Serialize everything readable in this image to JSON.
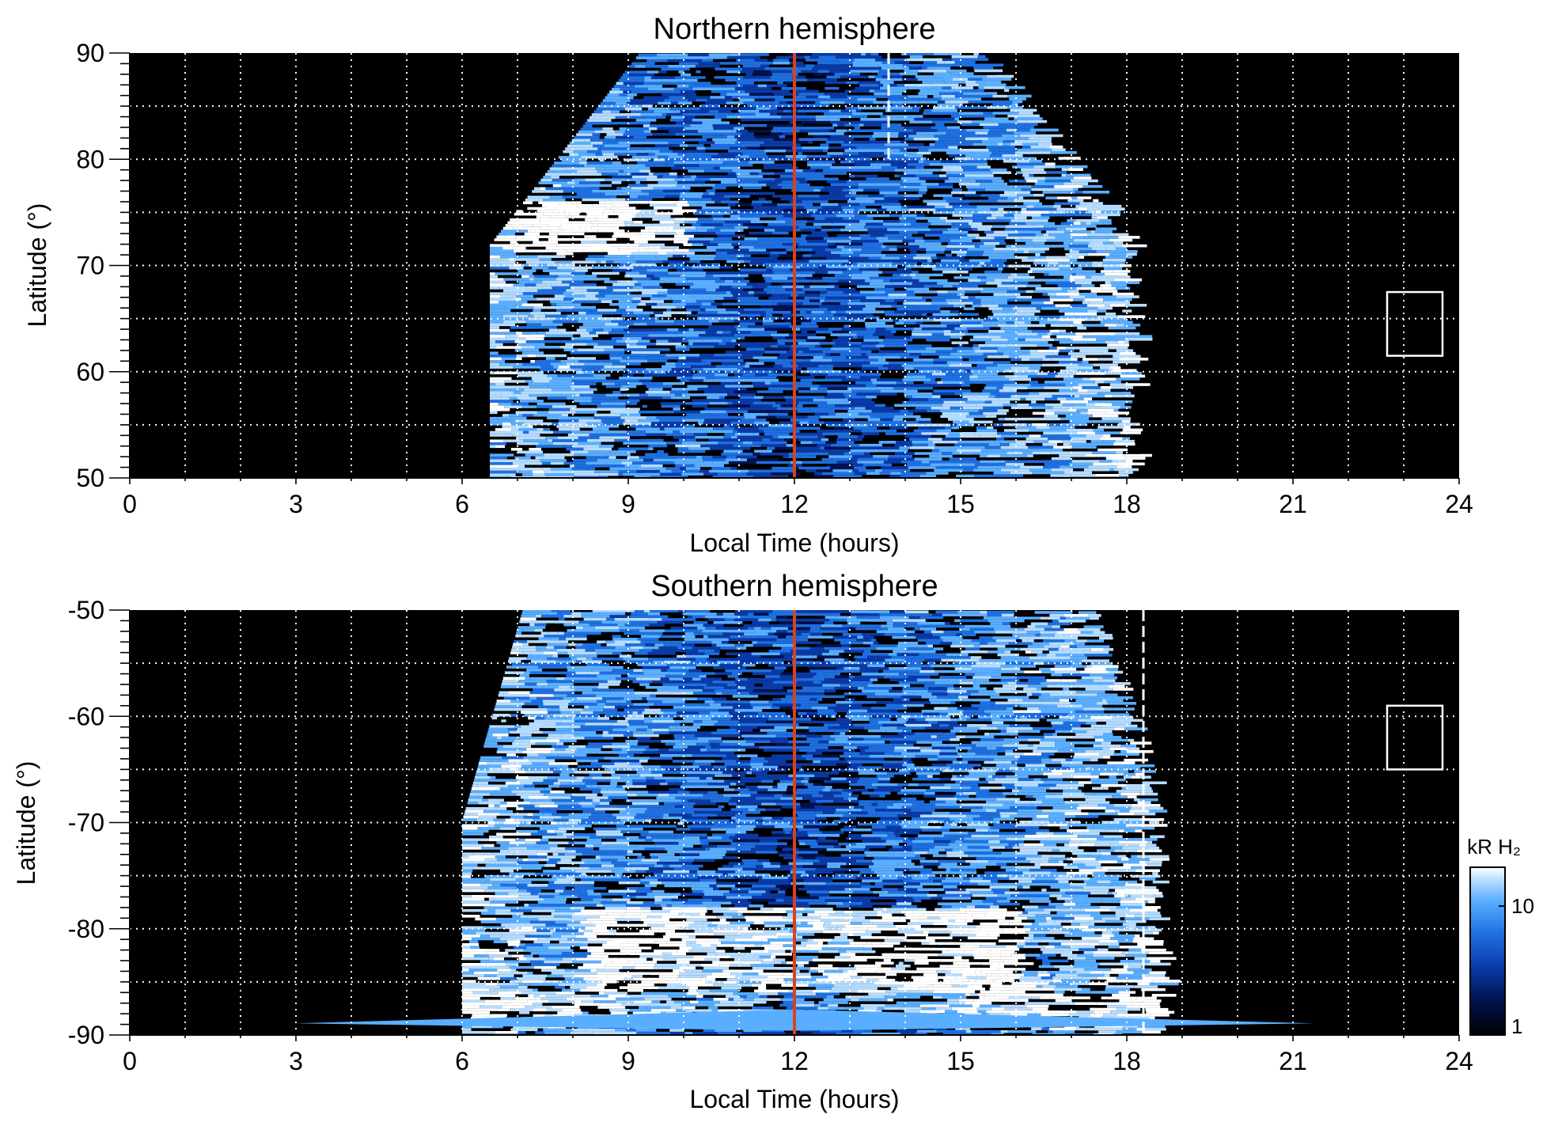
{
  "colors": {
    "background": "#ffffff",
    "plot_background": "#000000",
    "grid": "#ffffff",
    "noon_line": "#d8431c",
    "reference_line": "#ffffff",
    "colormap": [
      "#000000",
      "#02124e",
      "#0a3aa6",
      "#1e6fe0",
      "#5aaeff",
      "#b6dcff",
      "#ffffff"
    ]
  },
  "chart_data": [
    {
      "type": "heatmap",
      "title": "Northern hemisphere",
      "xlabel": "Local Time (hours)",
      "ylabel": "Latitude (°)",
      "xlim": [
        0,
        24
      ],
      "ylim": [
        50,
        90
      ],
      "xticks": [
        0,
        3,
        6,
        9,
        12,
        15,
        18,
        21,
        24
      ],
      "xtick_labels": [
        "0",
        "3",
        "6",
        "9",
        "12",
        "15",
        "18",
        "21",
        "24"
      ],
      "yticks": [
        50,
        60,
        70,
        80,
        90
      ],
      "ytick_labels": [
        "50",
        "60",
        "70",
        "80",
        "90"
      ],
      "grid": true,
      "grid_x_step": 1,
      "grid_y_step": 5,
      "coverage_local_time": [
        6.5,
        18.0
      ],
      "bright_arc": {
        "local_time": [
          6.7,
          10.0
        ],
        "latitude": [
          71,
          76
        ]
      },
      "noon_line_local_time": 12.0,
      "reference_line_local_time": 13.7,
      "reference_line_latitude_range": [
        80,
        90
      ],
      "box_marker": {
        "local_time": [
          22.7,
          23.7
        ],
        "latitude": [
          61.5,
          67.5
        ]
      }
    },
    {
      "type": "heatmap",
      "title": "Southern hemisphere",
      "xlabel": "Local Time (hours)",
      "ylabel": "Latitude (°)",
      "xlim": [
        0,
        24
      ],
      "ylim": [
        -90,
        -50
      ],
      "xticks": [
        0,
        3,
        6,
        9,
        12,
        15,
        18,
        21,
        24
      ],
      "xtick_labels": [
        "0",
        "3",
        "6",
        "9",
        "12",
        "15",
        "18",
        "21",
        "24"
      ],
      "yticks": [
        -90,
        -80,
        -70,
        -60,
        -50
      ],
      "ytick_labels": [
        "-90",
        "-80",
        "-70",
        "-60",
        "-50"
      ],
      "grid": true,
      "grid_x_step": 1,
      "grid_y_step": 5,
      "coverage_local_time": [
        6.0,
        18.5
      ],
      "bright_arc": {
        "local_time": [
          8.0,
          16.0
        ],
        "latitude": [
          -86,
          -78
        ]
      },
      "noon_line_local_time": 12.0,
      "reference_line_local_time": 18.3,
      "reference_line_latitude_range": [
        -90,
        -50
      ],
      "box_marker": {
        "local_time": [
          22.7,
          23.7
        ],
        "latitude": [
          -65,
          -59
        ]
      },
      "colorbar": {
        "label": "kR H₂",
        "scale": "log",
        "range": [
          1,
          20
        ],
        "ticks": [
          1,
          10
        ],
        "tick_labels": [
          "1",
          "10"
        ]
      }
    }
  ]
}
